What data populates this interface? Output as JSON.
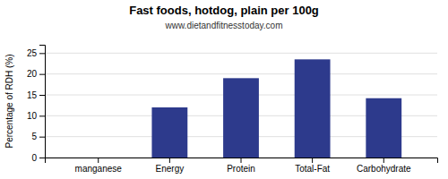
{
  "chart_data": {
    "type": "bar",
    "title": "Fast foods, hotdog, plain per 100g",
    "subtitle": "www.dietandfitnesstoday.com",
    "categories": [
      "manganese",
      "Energy",
      "Protein",
      "Total-Fat",
      "Carbohydrate"
    ],
    "values": [
      0,
      12,
      19,
      23.5,
      14.2
    ],
    "color": "#2d3a8c",
    "ylabel": "Percentage of RDH (%)",
    "ylim": [
      0,
      27
    ],
    "yticks": [
      0,
      5,
      10,
      15,
      20,
      25
    ],
    "grid": true
  }
}
